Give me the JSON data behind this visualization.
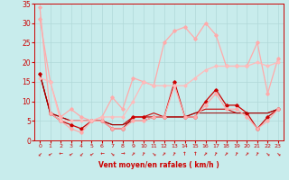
{
  "background_color": "#c8ecec",
  "grid_color": "#b0d8d8",
  "xlabel": "Vent moyen/en rafales ( km/h )",
  "xlabel_color": "#cc0000",
  "tick_color": "#cc0000",
  "xlim": [
    -0.5,
    23.5
  ],
  "ylim": [
    0,
    35
  ],
  "yticks": [
    0,
    5,
    10,
    15,
    20,
    25,
    30,
    35
  ],
  "xticks": [
    0,
    1,
    2,
    3,
    4,
    5,
    6,
    7,
    8,
    9,
    10,
    11,
    12,
    13,
    14,
    15,
    16,
    17,
    18,
    19,
    20,
    21,
    22,
    23
  ],
  "lines": [
    {
      "x": [
        0,
        1,
        2,
        3,
        4,
        5,
        6,
        7,
        8,
        9,
        10,
        11,
        12,
        13,
        14,
        15,
        16,
        17,
        18,
        19,
        20,
        21,
        22,
        23
      ],
      "y": [
        17,
        7,
        5,
        4,
        3,
        5,
        5,
        3,
        3,
        6,
        6,
        6,
        6,
        15,
        6,
        6,
        10,
        13,
        9,
        9,
        7,
        3,
        6,
        8
      ],
      "color": "#cc0000",
      "lw": 0.9,
      "marker": "D",
      "ms": 1.8
    },
    {
      "x": [
        0,
        1,
        2,
        3,
        4,
        5,
        6,
        7,
        8,
        9,
        10,
        11,
        12,
        13,
        14,
        15,
        16,
        17,
        18,
        19,
        20,
        21,
        22,
        23
      ],
      "y": [
        17,
        7,
        6,
        5,
        5,
        5,
        5,
        4,
        4,
        6,
        6,
        7,
        6,
        6,
        6,
        7,
        8,
        8,
        8,
        7,
        7,
        7,
        7,
        8
      ],
      "color": "#cc0000",
      "lw": 0.8,
      "marker": null,
      "ms": 0
    },
    {
      "x": [
        0,
        1,
        2,
        3,
        4,
        5,
        6,
        7,
        8,
        9,
        10,
        11,
        12,
        13,
        14,
        15,
        16,
        17,
        18,
        19,
        20,
        21,
        22,
        23
      ],
      "y": [
        17,
        7,
        6,
        5,
        5,
        5,
        5,
        4,
        4,
        5,
        5,
        6,
        6,
        6,
        6,
        7,
        7,
        7,
        7,
        7,
        7,
        7,
        7,
        8
      ],
      "color": "#990000",
      "lw": 0.7,
      "marker": null,
      "ms": 0
    },
    {
      "x": [
        0,
        1,
        2,
        3,
        4,
        5,
        6,
        7,
        8,
        9,
        10,
        11,
        12,
        13,
        14,
        15,
        16,
        17,
        18,
        19,
        20,
        21,
        22,
        23
      ],
      "y": [
        34,
        7,
        5,
        3,
        2,
        5,
        5,
        3,
        3,
        5,
        5,
        6,
        6,
        14,
        6,
        6,
        9,
        12,
        8,
        8,
        6,
        3,
        5,
        8
      ],
      "color": "#ffaaaa",
      "lw": 0.9,
      "marker": "D",
      "ms": 1.8
    },
    {
      "x": [
        0,
        1,
        2,
        3,
        4,
        5,
        6,
        7,
        8,
        9,
        10,
        11,
        12,
        13,
        14,
        15,
        16,
        17,
        18,
        19,
        20,
        21,
        22,
        23
      ],
      "y": [
        31,
        15,
        6,
        8,
        6,
        5,
        6,
        11,
        8,
        16,
        15,
        14,
        25,
        28,
        29,
        26,
        30,
        27,
        19,
        19,
        19,
        25,
        12,
        21
      ],
      "color": "#ffaaaa",
      "lw": 0.9,
      "marker": "D",
      "ms": 1.8
    },
    {
      "x": [
        0,
        1,
        2,
        3,
        4,
        5,
        6,
        7,
        8,
        9,
        10,
        11,
        12,
        13,
        14,
        15,
        16,
        17,
        18,
        19,
        20,
        21,
        22,
        23
      ],
      "y": [
        16,
        15,
        5,
        5,
        5,
        5,
        6,
        6,
        6,
        10,
        15,
        14,
        14,
        14,
        14,
        16,
        18,
        19,
        19,
        19,
        19,
        20,
        19,
        20
      ],
      "color": "#ffbbbb",
      "lw": 0.9,
      "marker": "D",
      "ms": 1.6
    }
  ],
  "arrow_angles": [
    225,
    210,
    180,
    210,
    225,
    210,
    180,
    315,
    0,
    45,
    60,
    315,
    45,
    60,
    90,
    90,
    45,
    60,
    45,
    60,
    45,
    60,
    315,
    315
  ]
}
